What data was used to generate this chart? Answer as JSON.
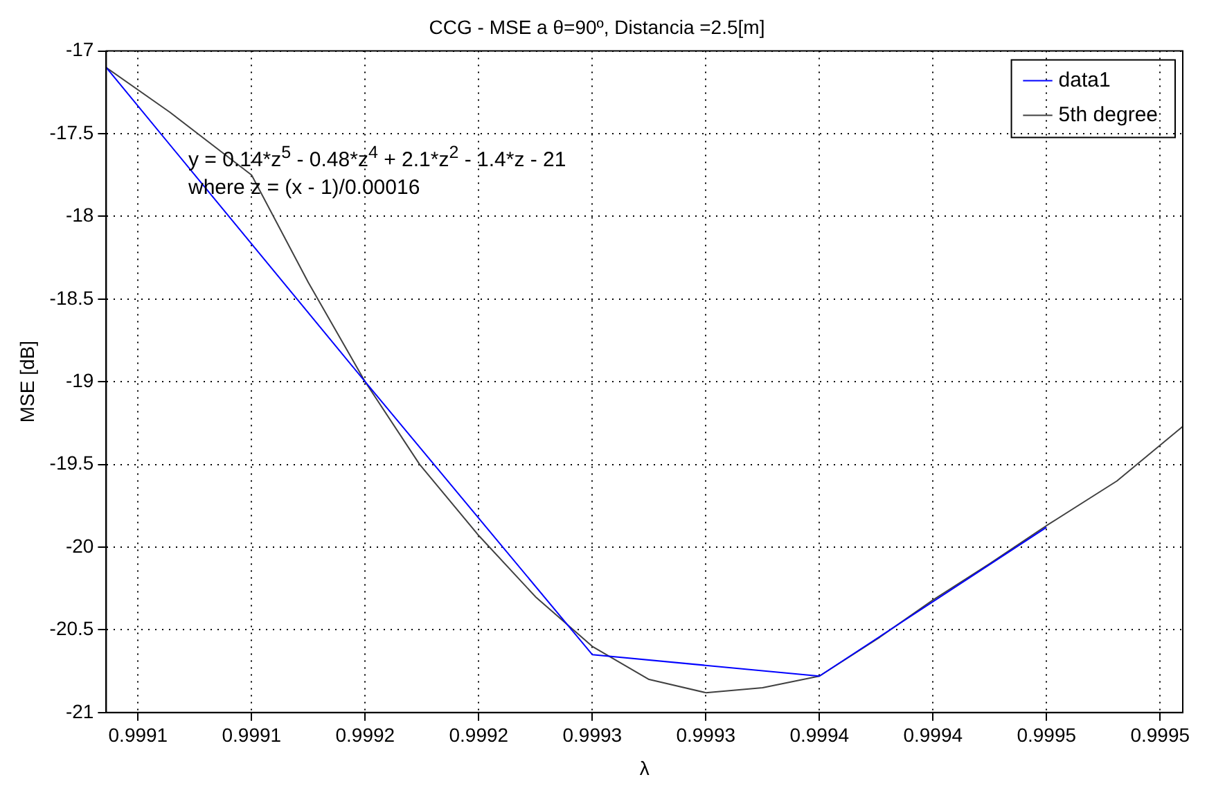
{
  "chart_data": {
    "type": "line",
    "title": "CCG - MSE a θ=90º, Distancia =2.5[m]",
    "xlabel": "λ",
    "ylabel": "MSE [dB]",
    "xlim": [
      0.999086,
      0.99956
    ],
    "xticks": [
      {
        "value": 0.9991,
        "label": "0.9991"
      },
      {
        "value": 0.99915,
        "label": "0.9991"
      },
      {
        "value": 0.9992,
        "label": "0.9992"
      },
      {
        "value": 0.99925,
        "label": "0.9992"
      },
      {
        "value": 0.9993,
        "label": "0.9993"
      },
      {
        "value": 0.99935,
        "label": "0.9993"
      },
      {
        "value": 0.9994,
        "label": "0.9994"
      },
      {
        "value": 0.99945,
        "label": "0.9994"
      },
      {
        "value": 0.9995,
        "label": "0.9995"
      },
      {
        "value": 0.99955,
        "label": "0.9995"
      }
    ],
    "ylim": [
      -21,
      -17
    ],
    "yticks": [
      -21,
      -20.5,
      -20,
      -19.5,
      -19,
      -18.5,
      -18,
      -17.5,
      -17
    ],
    "grid": true,
    "legend": "top right",
    "marker": "none",
    "line_style": "solid",
    "annotations": [
      "y = 0.14*z$^{5}$ - 0.48*z$^{4}$ + 2.1*z$^{2}$ - 1.4*z - 21",
      "where z = (x - 1)/0.00016"
    ],
    "series": [
      {
        "name": "data1",
        "color": "#0000ff",
        "x": [
          0.999086,
          0.9992,
          0.9993,
          0.9994,
          0.9995
        ],
        "values": [
          -17.1,
          -19.0,
          -20.65,
          -20.78,
          -19.88
        ]
      },
      {
        "name": "5th degree",
        "color": "#404040",
        "x": [
          0.999086,
          0.999114,
          0.99915,
          0.999175,
          0.9992,
          0.999224,
          0.99925,
          0.999275,
          0.9993,
          0.999325,
          0.99935,
          0.999375,
          0.9994,
          0.999426,
          0.99945,
          0.999475,
          0.9995,
          0.999531,
          0.99956
        ],
        "values": [
          -17.1,
          -17.37,
          -17.75,
          -18.4,
          -19.0,
          -19.5,
          -19.93,
          -20.3,
          -20.6,
          -20.8,
          -20.88,
          -20.85,
          -20.78,
          -20.55,
          -20.32,
          -20.1,
          -19.87,
          -19.6,
          -19.27
        ]
      }
    ]
  }
}
